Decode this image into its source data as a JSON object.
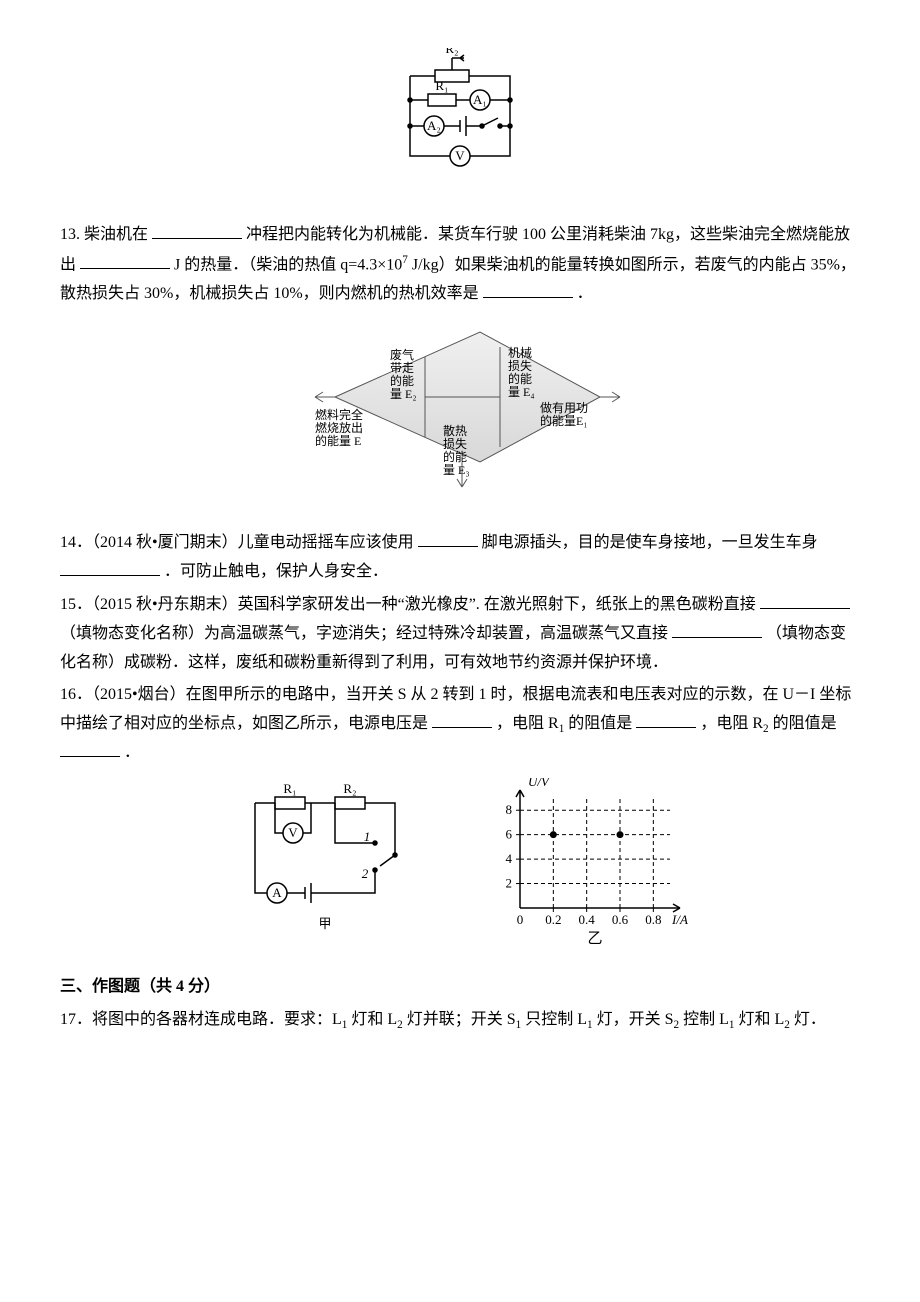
{
  "fig12": {
    "r2": "R₂",
    "r1": "R₁",
    "a1": "A₁",
    "a2": "A₂",
    "v": "V",
    "stroke": "#000000",
    "fill": "#ffffff",
    "fontsize": 14
  },
  "q13": {
    "prefix": "13. 柴油机在",
    "mid1": "冲程把内能转化为机械能．某货车行驶 100 公里消耗柴油 7kg，这些柴油完全燃烧能放出",
    "mid2": "J 的热量．（柴油的热值 q=4.3×10",
    "exp": "7",
    "mid3": "J/kg）如果柴油机的能量转换如图所示，若废气的内能占 35%，散热损失占 30%，机械损失占 10%，则内燃机的热机效率是",
    "tail": "．"
  },
  "fig13": {
    "labels": {
      "waste": "废气\n带走\n的能\n量 E₂",
      "fuel": "燃料完全\n燃烧放出\n的能量 E",
      "heat": "散热\n损失\n的能\n量 E₃",
      "mech": "机械\n损失\n的能\n量 E₄",
      "useful": "做有用功\n的能量E₁"
    },
    "stroke": "#404040",
    "fill": "#e8e8e8",
    "fontsize": 12
  },
  "q14": {
    "text1": "14．（2014 秋•厦门期末）儿童电动摇摇车应该使用",
    "text2": "脚电源插头，目的是使车身接地，一旦发生车身",
    "text3": "．可防止触电，保护人身安全．"
  },
  "q15": {
    "text1": "15．（2015 秋•丹东期末）英国科学家研发出一种“激光橡皮”. 在激光照射下，纸张上的黑色碳粉直接",
    "text2": "（填物态变化名称）为高温碳蒸气，字迹消失；经过特殊冷却装置，高温碳蒸气又直接",
    "text3": "（填物态变化名称）成碳粉．这样，废纸和碳粉重新得到了利用，可有效地节约资源并保护环境．"
  },
  "q16": {
    "text1": "16．（2015•烟台）在图甲所示的电路中，当开关 S 从 2 转到 1 时，根据电流表和电压表对应的示数，在 U－I 坐标中描绘了相对应的坐标点，如图乙所示，电源电压是",
    "text2": "，电阻 R",
    "sub1": "1",
    "text3": " 的阻值是",
    "text4": "，电阻 R",
    "sub2": "2",
    "text5": " 的阻值是",
    "text6": "．"
  },
  "fig16a": {
    "r1": "R₁",
    "r2": "R₂",
    "v": "V",
    "a": "A",
    "one": "1",
    "two": "2",
    "caption": "甲",
    "stroke": "#000000",
    "fontsize": 13
  },
  "fig16b": {
    "ylabel": "U/V",
    "xlabel": "I/A",
    "yticks": [
      "2",
      "4",
      "6",
      "8"
    ],
    "ytick_vals": [
      2,
      4,
      6,
      8
    ],
    "xticks": [
      "0",
      "0.2",
      "0.4",
      "0.6",
      "0.8"
    ],
    "xtick_vals": [
      0,
      0.2,
      0.4,
      0.6,
      0.8
    ],
    "points": [
      [
        0.2,
        6
      ],
      [
        0.6,
        6
      ]
    ],
    "caption": "乙",
    "axis_color": "#000000",
    "grid_color": "#000000",
    "ymax": 9,
    "xmax": 0.9,
    "fontsize": 13
  },
  "section3": "三、作图题（共 4 分）",
  "q17": {
    "t1": "17．将图中的各器材连成电路．要求：L",
    "s1": "1",
    "t2": "灯和 L",
    "s2": "2",
    "t3": "灯并联；开关 S",
    "s3": "1",
    "t4": "只控制 L",
    "s4": "1",
    "t5": "灯，开关 S",
    "s5": "2",
    "t6": "控制 L",
    "s6": "1",
    "t7": "灯和 L",
    "s7": "2",
    "t8": "灯．"
  }
}
